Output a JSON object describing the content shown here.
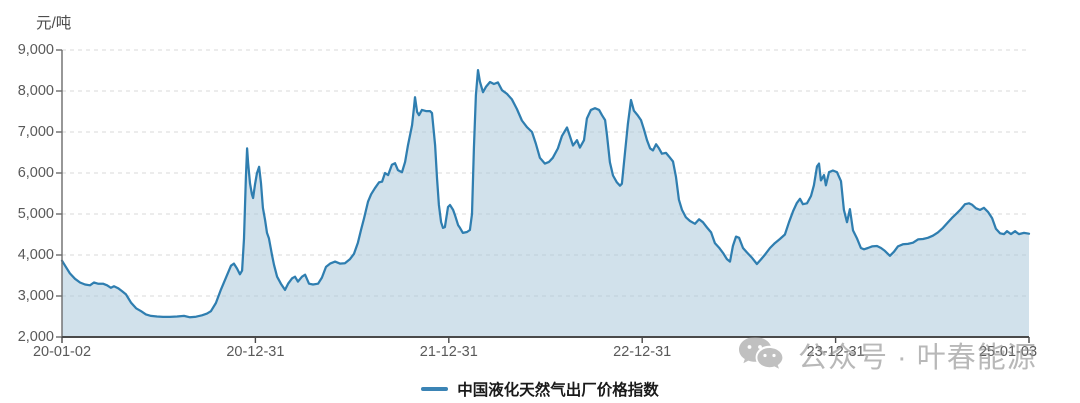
{
  "chart": {
    "unit": "元/吨",
    "legend_label": "中国液化天然气出厂价格指数",
    "watermark_text": "公众号 · 叶春能源",
    "colors": {
      "line": "#2f7eb0",
      "area_fill": "rgba(172,201,219,0.55)",
      "grid": "#d9d9d9",
      "y_axis": "#6b6b6b",
      "x_axis": "#4a4a4a",
      "tick_text": "#595959",
      "legend_marker": "#3b84b5",
      "watermark": "#8e8e8e"
    }
  },
  "chart_data": {
    "type": "area",
    "title": "",
    "ylabel": "元/吨",
    "series_name": "中国液化天然气出厂价格指数",
    "x_unit": "decimal_year",
    "xlim": [
      2020.0,
      2025.0
    ],
    "ylim": [
      2000,
      9000
    ],
    "grid": "horizontal-dashed",
    "legend_position": "bottom-center",
    "yticks": [
      {
        "v": 2000,
        "label": "2,000"
      },
      {
        "v": 3000,
        "label": "3,000"
      },
      {
        "v": 4000,
        "label": "4,000"
      },
      {
        "v": 5000,
        "label": "5,000"
      },
      {
        "v": 6000,
        "label": "6,000"
      },
      {
        "v": 7000,
        "label": "7,000"
      },
      {
        "v": 8000,
        "label": "8,000"
      },
      {
        "v": 9000,
        "label": "9,000"
      }
    ],
    "xticks": [
      {
        "v": 2020.0,
        "label": "20-01-02"
      },
      {
        "v": 2021.0,
        "label": "20-12-31"
      },
      {
        "v": 2022.0,
        "label": "21-12-31"
      },
      {
        "v": 2023.0,
        "label": "22-12-31"
      },
      {
        "v": 2024.0,
        "label": "23-12-31"
      },
      {
        "v": 2025.0,
        "label": "25-01-03"
      }
    ],
    "points": [
      [
        2020.0,
        3860
      ],
      [
        2020.021,
        3700
      ],
      [
        2020.041,
        3550
      ],
      [
        2020.067,
        3420
      ],
      [
        2020.093,
        3330
      ],
      [
        2020.119,
        3280
      ],
      [
        2020.145,
        3260
      ],
      [
        2020.165,
        3330
      ],
      [
        2020.186,
        3300
      ],
      [
        2020.212,
        3300
      ],
      [
        2020.233,
        3260
      ],
      [
        2020.253,
        3200
      ],
      [
        2020.269,
        3240
      ],
      [
        2020.29,
        3190
      ],
      [
        2020.31,
        3120
      ],
      [
        2020.331,
        3040
      ],
      [
        2020.357,
        2840
      ],
      [
        2020.383,
        2700
      ],
      [
        2020.409,
        2630
      ],
      [
        2020.434,
        2550
      ],
      [
        2020.46,
        2515
      ],
      [
        2020.491,
        2500
      ],
      [
        2020.522,
        2490
      ],
      [
        2020.558,
        2490
      ],
      [
        2020.595,
        2500
      ],
      [
        2020.631,
        2515
      ],
      [
        2020.662,
        2480
      ],
      [
        2020.693,
        2495
      ],
      [
        2020.724,
        2530
      ],
      [
        2020.75,
        2570
      ],
      [
        2020.77,
        2630
      ],
      [
        2020.796,
        2830
      ],
      [
        2020.822,
        3160
      ],
      [
        2020.848,
        3450
      ],
      [
        2020.874,
        3740
      ],
      [
        2020.889,
        3790
      ],
      [
        2020.905,
        3670
      ],
      [
        2020.92,
        3530
      ],
      [
        2020.931,
        3620
      ],
      [
        2020.941,
        4400
      ],
      [
        2020.951,
        5900
      ],
      [
        2020.957,
        6600
      ],
      [
        2020.962,
        6250
      ],
      [
        2020.972,
        5750
      ],
      [
        2020.982,
        5480
      ],
      [
        2020.988,
        5390
      ],
      [
        2020.998,
        5720
      ],
      [
        2021.008,
        5990
      ],
      [
        2021.019,
        6150
      ],
      [
        2021.029,
        5750
      ],
      [
        2021.039,
        5150
      ],
      [
        2021.05,
        4850
      ],
      [
        2021.06,
        4540
      ],
      [
        2021.07,
        4410
      ],
      [
        2021.086,
        4000
      ],
      [
        2021.096,
        3760
      ],
      [
        2021.112,
        3470
      ],
      [
        2021.132,
        3300
      ],
      [
        2021.153,
        3150
      ],
      [
        2021.169,
        3300
      ],
      [
        2021.189,
        3430
      ],
      [
        2021.205,
        3470
      ],
      [
        2021.22,
        3350
      ],
      [
        2021.241,
        3470
      ],
      [
        2021.257,
        3520
      ],
      [
        2021.277,
        3300
      ],
      [
        2021.298,
        3280
      ],
      [
        2021.324,
        3300
      ],
      [
        2021.344,
        3450
      ],
      [
        2021.365,
        3710
      ],
      [
        2021.386,
        3790
      ],
      [
        2021.412,
        3840
      ],
      [
        2021.437,
        3790
      ],
      [
        2021.463,
        3800
      ],
      [
        2021.489,
        3900
      ],
      [
        2021.51,
        4030
      ],
      [
        2021.53,
        4300
      ],
      [
        2021.546,
        4610
      ],
      [
        2021.562,
        4900
      ],
      [
        2021.582,
        5300
      ],
      [
        2021.598,
        5480
      ],
      [
        2021.618,
        5630
      ],
      [
        2021.639,
        5770
      ],
      [
        2021.655,
        5790
      ],
      [
        2021.67,
        6000
      ],
      [
        2021.686,
        5950
      ],
      [
        2021.706,
        6200
      ],
      [
        2021.722,
        6240
      ],
      [
        2021.737,
        6070
      ],
      [
        2021.758,
        6020
      ],
      [
        2021.774,
        6270
      ],
      [
        2021.789,
        6680
      ],
      [
        2021.81,
        7170
      ],
      [
        2021.82,
        7600
      ],
      [
        2021.825,
        7850
      ],
      [
        2021.836,
        7490
      ],
      [
        2021.846,
        7410
      ],
      [
        2021.861,
        7540
      ],
      [
        2021.882,
        7510
      ],
      [
        2021.903,
        7510
      ],
      [
        2021.913,
        7460
      ],
      [
        2021.929,
        6680
      ],
      [
        2021.939,
        5880
      ],
      [
        2021.949,
        5220
      ],
      [
        2021.96,
        4800
      ],
      [
        2021.97,
        4660
      ],
      [
        2021.98,
        4680
      ],
      [
        2021.996,
        5170
      ],
      [
        2022.006,
        5220
      ],
      [
        2022.022,
        5100
      ],
      [
        2022.032,
        4970
      ],
      [
        2022.048,
        4730
      ],
      [
        2022.058,
        4660
      ],
      [
        2022.073,
        4540
      ],
      [
        2022.094,
        4560
      ],
      [
        2022.109,
        4610
      ],
      [
        2022.12,
        5000
      ],
      [
        2022.13,
        6600
      ],
      [
        2022.14,
        7900
      ],
      [
        2022.151,
        8510
      ],
      [
        2022.161,
        8230
      ],
      [
        2022.177,
        7970
      ],
      [
        2022.192,
        8100
      ],
      [
        2022.213,
        8220
      ],
      [
        2022.233,
        8170
      ],
      [
        2022.254,
        8210
      ],
      [
        2022.275,
        8020
      ],
      [
        2022.301,
        7930
      ],
      [
        2022.326,
        7800
      ],
      [
        2022.352,
        7560
      ],
      [
        2022.378,
        7280
      ],
      [
        2022.404,
        7120
      ],
      [
        2022.43,
        7000
      ],
      [
        2022.45,
        6720
      ],
      [
        2022.471,
        6370
      ],
      [
        2022.497,
        6230
      ],
      [
        2022.518,
        6270
      ],
      [
        2022.538,
        6370
      ],
      [
        2022.564,
        6600
      ],
      [
        2022.585,
        6900
      ],
      [
        2022.611,
        7110
      ],
      [
        2022.626,
        6900
      ],
      [
        2022.642,
        6670
      ],
      [
        2022.663,
        6800
      ],
      [
        2022.678,
        6620
      ],
      [
        2022.699,
        6800
      ],
      [
        2022.714,
        7330
      ],
      [
        2022.735,
        7540
      ],
      [
        2022.756,
        7580
      ],
      [
        2022.777,
        7540
      ],
      [
        2022.792,
        7410
      ],
      [
        2022.808,
        7290
      ],
      [
        2022.818,
        6920
      ],
      [
        2022.833,
        6260
      ],
      [
        2022.849,
        5940
      ],
      [
        2022.869,
        5770
      ],
      [
        2022.885,
        5690
      ],
      [
        2022.895,
        5740
      ],
      [
        2022.911,
        6500
      ],
      [
        2022.926,
        7200
      ],
      [
        2022.942,
        7780
      ],
      [
        2022.957,
        7520
      ],
      [
        2022.978,
        7400
      ],
      [
        2022.994,
        7290
      ],
      [
        2023.01,
        7050
      ],
      [
        2023.025,
        6800
      ],
      [
        2023.041,
        6600
      ],
      [
        2023.056,
        6550
      ],
      [
        2023.072,
        6700
      ],
      [
        2023.087,
        6600
      ],
      [
        2023.102,
        6470
      ],
      [
        2023.123,
        6490
      ],
      [
        2023.139,
        6400
      ],
      [
        2023.159,
        6280
      ],
      [
        2023.175,
        5900
      ],
      [
        2023.19,
        5350
      ],
      [
        2023.206,
        5100
      ],
      [
        2023.226,
        4920
      ],
      [
        2023.247,
        4830
      ],
      [
        2023.273,
        4760
      ],
      [
        2023.294,
        4870
      ],
      [
        2023.314,
        4800
      ],
      [
        2023.335,
        4670
      ],
      [
        2023.356,
        4550
      ],
      [
        2023.376,
        4290
      ],
      [
        2023.397,
        4180
      ],
      [
        2023.418,
        4050
      ],
      [
        2023.438,
        3900
      ],
      [
        2023.454,
        3840
      ],
      [
        2023.469,
        4220
      ],
      [
        2023.485,
        4450
      ],
      [
        2023.501,
        4420
      ],
      [
        2023.521,
        4170
      ],
      [
        2023.542,
        4060
      ],
      [
        2023.568,
        3930
      ],
      [
        2023.593,
        3780
      ],
      [
        2023.614,
        3890
      ],
      [
        2023.635,
        4010
      ],
      [
        2023.661,
        4170
      ],
      [
        2023.686,
        4290
      ],
      [
        2023.712,
        4390
      ],
      [
        2023.738,
        4500
      ],
      [
        2023.759,
        4800
      ],
      [
        2023.78,
        5070
      ],
      [
        2023.8,
        5270
      ],
      [
        2023.816,
        5370
      ],
      [
        2023.831,
        5240
      ],
      [
        2023.852,
        5260
      ],
      [
        2023.873,
        5440
      ],
      [
        2023.888,
        5700
      ],
      [
        2023.904,
        6160
      ],
      [
        2023.914,
        6230
      ],
      [
        2023.924,
        5820
      ],
      [
        2023.94,
        5950
      ],
      [
        2023.95,
        5700
      ],
      [
        2023.966,
        6020
      ],
      [
        2023.986,
        6060
      ],
      [
        2024.007,
        6020
      ],
      [
        2024.028,
        5800
      ],
      [
        2024.043,
        5100
      ],
      [
        2024.059,
        4800
      ],
      [
        2024.074,
        5120
      ],
      [
        2024.09,
        4600
      ],
      [
        2024.11,
        4410
      ],
      [
        2024.131,
        4170
      ],
      [
        2024.147,
        4140
      ],
      [
        2024.167,
        4170
      ],
      [
        2024.188,
        4210
      ],
      [
        2024.214,
        4220
      ],
      [
        2024.235,
        4170
      ],
      [
        2024.255,
        4100
      ],
      [
        2024.281,
        3980
      ],
      [
        2024.302,
        4080
      ],
      [
        2024.322,
        4210
      ],
      [
        2024.348,
        4260
      ],
      [
        2024.374,
        4270
      ],
      [
        2024.4,
        4300
      ],
      [
        2024.426,
        4380
      ],
      [
        2024.452,
        4390
      ],
      [
        2024.477,
        4420
      ],
      [
        2024.503,
        4470
      ],
      [
        2024.529,
        4550
      ],
      [
        2024.555,
        4660
      ],
      [
        2024.581,
        4800
      ],
      [
        2024.601,
        4900
      ],
      [
        2024.627,
        5020
      ],
      [
        2024.648,
        5120
      ],
      [
        2024.669,
        5240
      ],
      [
        2024.69,
        5260
      ],
      [
        2024.705,
        5230
      ],
      [
        2024.726,
        5140
      ],
      [
        2024.747,
        5100
      ],
      [
        2024.767,
        5150
      ],
      [
        2024.788,
        5050
      ],
      [
        2024.809,
        4900
      ],
      [
        2024.829,
        4640
      ],
      [
        2024.85,
        4530
      ],
      [
        2024.871,
        4510
      ],
      [
        2024.886,
        4580
      ],
      [
        2024.907,
        4510
      ],
      [
        2024.928,
        4580
      ],
      [
        2024.948,
        4510
      ],
      [
        2024.974,
        4540
      ],
      [
        2025.0,
        4520
      ]
    ]
  }
}
